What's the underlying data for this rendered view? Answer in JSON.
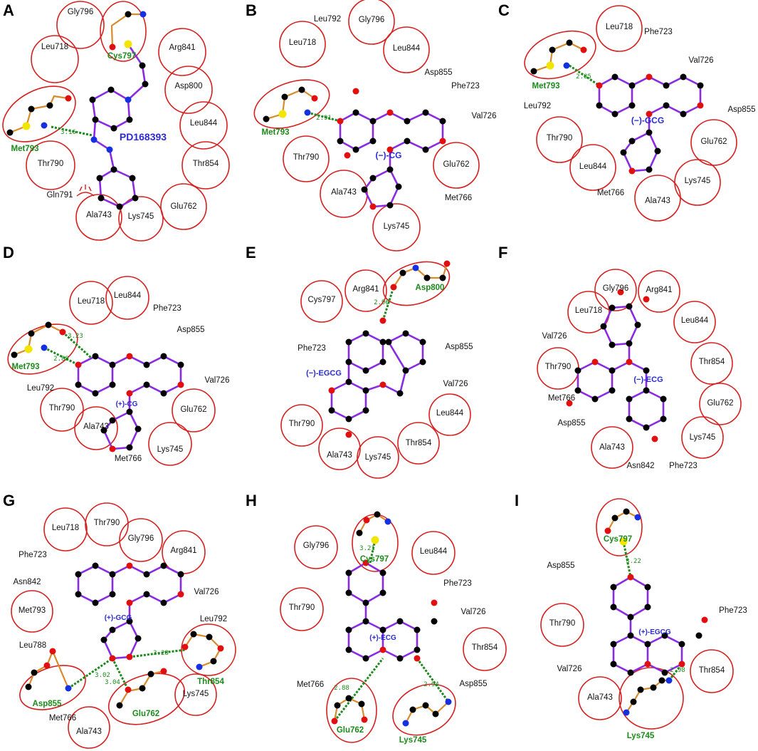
{
  "colors": {
    "contact_ring": "#d62020",
    "ligand_bond": "#8a2be2",
    "residue_bond": "#d98a2b",
    "hbond": "#1a8a1a",
    "ligand_label": "#2a2ad6",
    "carbon": "#000000",
    "oxygen": "#e01010",
    "nitrogen": "#1530e0",
    "sulfur": "#f2e600"
  },
  "panels": [
    {
      "label": "A",
      "ligand": "PD168393",
      "hbond_residues": [
        "Met793",
        "Cys797"
      ],
      "hbond_distances": [
        "3.16"
      ],
      "contacts": [
        "Gly796",
        "Leu718",
        "Arg841",
        "Asp800",
        "Leu844",
        "Thr854",
        "Thr790",
        "Gln791",
        "Ala743",
        "Lys745",
        "Glu762"
      ]
    },
    {
      "label": "B",
      "ligand": "(−)-CG",
      "hbond_residues": [
        "Met793"
      ],
      "hbond_distances": [
        "2.91"
      ],
      "contacts": [
        "Leu792",
        "Gly796",
        "Leu718",
        "Leu844",
        "Asp855",
        "Phe723",
        "Val726",
        "Thr790",
        "Glu762",
        "Ala743",
        "Met766",
        "Lys745"
      ]
    },
    {
      "label": "C",
      "ligand": "(−)-GCG",
      "hbond_residues": [
        "Met793"
      ],
      "hbond_distances": [
        "2.85"
      ],
      "contacts": [
        "Leu718",
        "Phe723",
        "Val726",
        "Leu792",
        "Asp855",
        "Thr790",
        "Glu762",
        "Leu844",
        "Met766",
        "Ala743",
        "Lys745"
      ]
    },
    {
      "label": "D",
      "ligand": "(+)-CG",
      "hbond_residues": [
        "Met793"
      ],
      "hbond_distances": [
        "3.23",
        "2.88"
      ],
      "contacts": [
        "Leu718",
        "Leu844",
        "Phe723",
        "Asp855",
        "Leu792",
        "Val726",
        "Thr790",
        "Glu762",
        "Ala743",
        "Met766",
        "Lys745"
      ]
    },
    {
      "label": "E",
      "ligand": "(−)-EGCG",
      "hbond_residues": [
        "Asp800"
      ],
      "hbond_distances": [
        "2.96"
      ],
      "contacts": [
        "Cys797",
        "Arg841",
        "Phe723",
        "Asp855",
        "Val726",
        "Leu844",
        "Thr790",
        "Ala743",
        "Lys745",
        "Thr854"
      ]
    },
    {
      "label": "F",
      "ligand": "(−)-ECG",
      "hbond_residues": [],
      "hbond_distances": [],
      "contacts": [
        "Gly796",
        "Arg841",
        "Leu718",
        "Leu844",
        "Val726",
        "Thr790",
        "Thr854",
        "Met766",
        "Glu762",
        "Asp855",
        "Lys745",
        "Ala743",
        "Asn842",
        "Phe723"
      ]
    },
    {
      "label": "G",
      "ligand": "(+)-GCG",
      "hbond_residues": [
        "Thr854",
        "Asp855",
        "Glu762"
      ],
      "hbond_distances": [
        "3.28",
        "3.02",
        "3.04"
      ],
      "contacts": [
        "Leu718",
        "Thr790",
        "Gly796",
        "Arg841",
        "Phe723",
        "Asn842",
        "Val726",
        "Met793",
        "Leu792",
        "Leu788",
        "Met766",
        "Lys745",
        "Ala743"
      ]
    },
    {
      "label": "H",
      "ligand": "(+)-ECG",
      "hbond_residues": [
        "Cys797",
        "Glu762",
        "Lys745"
      ],
      "hbond_distances": [
        "3.21",
        "2.88",
        "2.94"
      ],
      "contacts": [
        "Gly796",
        "Leu844",
        "Phe723",
        "Val726",
        "Thr790",
        "Thr854",
        "Met766",
        "Asp855"
      ]
    },
    {
      "label": "I",
      "ligand": "(+)-EGCG",
      "hbond_residues": [
        "Cys797",
        "Lys745"
      ],
      "hbond_distances": [
        "3.22",
        "2.98"
      ],
      "contacts": [
        "Asp855",
        "Phe723",
        "Thr790",
        "Thr854",
        "Val726",
        "Ala743"
      ]
    }
  ]
}
